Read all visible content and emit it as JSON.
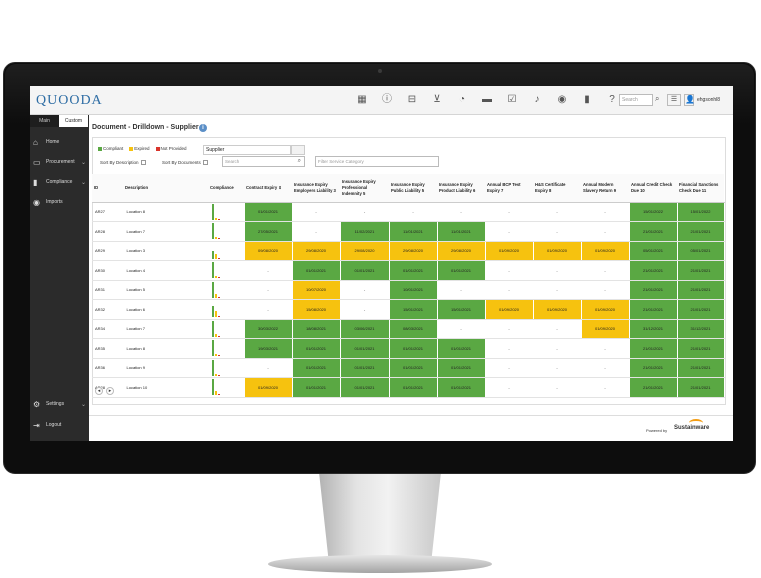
{
  "app": {
    "logo": "QUOODA",
    "user": "ehgsonhl8"
  },
  "topbar": {
    "icons": [
      "calendar-icon",
      "info-icon",
      "tray-icon",
      "filter-icon",
      "pie-chart-icon",
      "folder-icon",
      "calendar-check-icon",
      "bell-icon",
      "eye-icon",
      "bookmark-icon",
      "help-icon"
    ],
    "search_placeholder": "Search"
  },
  "sidebar": {
    "tabs": [
      "Main",
      "Custom"
    ],
    "items": [
      {
        "label": "Home",
        "icon": "home-icon"
      },
      {
        "label": "Procurement",
        "icon": "procurement-icon"
      },
      {
        "label": "Compliance",
        "icon": "bar-chart-icon"
      },
      {
        "label": "Imports",
        "icon": "database-icon"
      }
    ],
    "bottom": [
      {
        "label": "Settings",
        "icon": "gear-icon"
      },
      {
        "label": "Logout",
        "icon": "logout-icon"
      }
    ]
  },
  "page": {
    "title": "Document - Drilldown - Supplier",
    "legend": [
      {
        "label": "Compliant",
        "color": "#5aa843"
      },
      {
        "label": "Expired",
        "color": "#f6c20f"
      },
      {
        "label": "Not Provided",
        "color": "#d9342b"
      }
    ],
    "supplier_value": "Supplier",
    "sort_description": "Sort By Description",
    "sort_documents": "Sort By Documents",
    "search_placeholder": "Search",
    "filter_placeholder": "Filter Service Category"
  },
  "table": {
    "headers": [
      "ID",
      "Description",
      "Compliance",
      "Contract Expiry ⇕",
      "Insurance Expiry Employers Liability 3",
      "Insurance Expiry Professional Indemnity 5",
      "Insurance Expiry Public Liability 5",
      "Insurance Expiry Product Liability 6",
      "Annual BCP Test Expiry 7",
      "H&S Certificate Expiry 8",
      "Annual Modern Slavery Return 9",
      "Annual Credit Check Due 10",
      "Financial Sanctions Check Due 11"
    ],
    "rows": [
      {
        "id": "AR27",
        "desc": "Location 8",
        "bars": [
          1,
          0.12,
          0.08
        ],
        "cells": [
          [
            "g",
            "01/01/2021"
          ],
          [
            "w",
            "-"
          ],
          [
            "w",
            "-"
          ],
          [
            "w",
            "-"
          ],
          [
            "w",
            "-"
          ],
          [
            "w",
            "-"
          ],
          [
            "w",
            "-"
          ],
          [
            "w",
            "-"
          ],
          [
            "g",
            "15/01/2022"
          ],
          [
            "g",
            "15/01/2022"
          ]
        ]
      },
      {
        "id": "AR28",
        "desc": "Location 7",
        "bars": [
          1,
          0.12,
          0.08
        ],
        "cells": [
          [
            "g",
            "27/05/2021"
          ],
          [
            "w",
            "-"
          ],
          [
            "g",
            "11/02/2021"
          ],
          [
            "g",
            "11/01/2021"
          ],
          [
            "g",
            "11/01/2021"
          ],
          [
            "w",
            "-"
          ],
          [
            "w",
            "-"
          ],
          [
            "w",
            "-"
          ],
          [
            "g",
            "21/01/2021"
          ],
          [
            "g",
            "21/01/2021"
          ]
        ]
      },
      {
        "id": "AR29",
        "desc": "Location 3",
        "bars": [
          0.5,
          0.3,
          0.08
        ],
        "cells": [
          [
            "y",
            "09/08/2020"
          ],
          [
            "y",
            "29/08/2020"
          ],
          [
            "y",
            "29/08/2020"
          ],
          [
            "y",
            "29/08/2020"
          ],
          [
            "y",
            "29/08/2020"
          ],
          [
            "y",
            "01/09/2020"
          ],
          [
            "y",
            "01/09/2020"
          ],
          [
            "y",
            "01/09/2020"
          ],
          [
            "g",
            "05/01/2021"
          ],
          [
            "g",
            "05/01/2021"
          ]
        ]
      },
      {
        "id": "AR30",
        "desc": "Location 4",
        "bars": [
          1,
          0.12,
          0.08
        ],
        "cells": [
          [
            "w",
            "-"
          ],
          [
            "g",
            "01/01/2021"
          ],
          [
            "g",
            "01/01/2021"
          ],
          [
            "g",
            "01/01/2021"
          ],
          [
            "g",
            "01/01/2021"
          ],
          [
            "w",
            "-"
          ],
          [
            "w",
            "-"
          ],
          [
            "w",
            "-"
          ],
          [
            "g",
            "21/01/2021"
          ],
          [
            "g",
            "21/01/2021"
          ]
        ]
      },
      {
        "id": "AR31",
        "desc": "Location 5",
        "bars": [
          1,
          0.25,
          0.08
        ],
        "cells": [
          [
            "w",
            "-"
          ],
          [
            "y",
            "10/07/2020"
          ],
          [
            "w",
            "-"
          ],
          [
            "g",
            "10/01/2021"
          ],
          [
            "w",
            "-"
          ],
          [
            "w",
            "-"
          ],
          [
            "w",
            "-"
          ],
          [
            "w",
            "-"
          ],
          [
            "g",
            "21/01/2021"
          ],
          [
            "g",
            "21/01/2021"
          ]
        ]
      },
      {
        "id": "AR32",
        "desc": "Location 6",
        "bars": [
          0.7,
          0.4,
          0.08
        ],
        "cells": [
          [
            "w",
            "-"
          ],
          [
            "y",
            "15/08/2020"
          ],
          [
            "w",
            "-"
          ],
          [
            "g",
            "15/01/2021"
          ],
          [
            "g",
            "15/01/2021"
          ],
          [
            "y",
            "01/09/2020"
          ],
          [
            "y",
            "01/09/2020"
          ],
          [
            "y",
            "01/09/2020"
          ],
          [
            "g",
            "21/01/2021"
          ],
          [
            "g",
            "21/01/2021"
          ]
        ]
      },
      {
        "id": "AR34",
        "desc": "Location 7",
        "bars": [
          1,
          0.2,
          0.08
        ],
        "cells": [
          [
            "g",
            "30/03/2022"
          ],
          [
            "g",
            "18/08/2021"
          ],
          [
            "g",
            "03/06/2021"
          ],
          [
            "g",
            "08/03/2021"
          ],
          [
            "w",
            "-"
          ],
          [
            "w",
            "-"
          ],
          [
            "w",
            "-"
          ],
          [
            "y",
            "01/09/2020"
          ],
          [
            "g",
            "31/12/2021"
          ],
          [
            "g",
            "31/12/2021"
          ]
        ]
      },
      {
        "id": "AR35",
        "desc": "Location 8",
        "bars": [
          1,
          0.12,
          0.08
        ],
        "cells": [
          [
            "g",
            "19/03/2021"
          ],
          [
            "g",
            "01/01/2021"
          ],
          [
            "g",
            "01/01/2021"
          ],
          [
            "g",
            "01/01/2021"
          ],
          [
            "g",
            "01/01/2021"
          ],
          [
            "w",
            "-"
          ],
          [
            "w",
            "-"
          ],
          [
            "w",
            "-"
          ],
          [
            "g",
            "21/01/2021"
          ],
          [
            "g",
            "21/01/2021"
          ]
        ]
      },
      {
        "id": "AR36",
        "desc": "Location 9",
        "bars": [
          1,
          0.12,
          0.08
        ],
        "cells": [
          [
            "w",
            "-"
          ],
          [
            "g",
            "01/01/2021"
          ],
          [
            "g",
            "01/01/2021"
          ],
          [
            "g",
            "01/01/2021"
          ],
          [
            "g",
            "01/01/2021"
          ],
          [
            "w",
            "-"
          ],
          [
            "w",
            "-"
          ],
          [
            "w",
            "-"
          ],
          [
            "g",
            "21/01/2021"
          ],
          [
            "g",
            "21/01/2021"
          ]
        ]
      },
      {
        "id": "AR28",
        "desc": "Location 10",
        "bars": [
          1,
          0.25,
          0.08
        ],
        "cells": [
          [
            "y",
            "01/09/2020"
          ],
          [
            "g",
            "01/01/2021"
          ],
          [
            "g",
            "01/01/2021"
          ],
          [
            "g",
            "01/01/2021"
          ],
          [
            "g",
            "01/01/2021"
          ],
          [
            "w",
            "-"
          ],
          [
            "w",
            "-"
          ],
          [
            "w",
            "-"
          ],
          [
            "g",
            "21/01/2021"
          ],
          [
            "g",
            "21/01/2021"
          ]
        ]
      }
    ]
  },
  "footer": {
    "powered": "Powered by",
    "brand": "Sustainware"
  },
  "colors": {
    "compliant": "#5aa843",
    "expired": "#f6c20f",
    "not_provided": "#d9342b"
  }
}
